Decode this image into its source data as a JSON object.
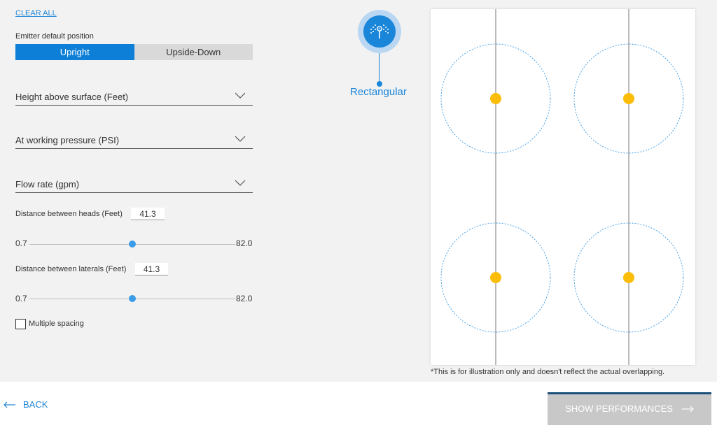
{
  "clear_all": "CLEAR ALL",
  "emitter": {
    "label": "Emitter default position",
    "options": [
      "Upright",
      "Upside-Down"
    ],
    "selected": "Upright"
  },
  "dropdowns": {
    "height": "Height above surface (Feet)",
    "pressure": "At working pressure (PSI)",
    "flow": "Flow rate (gpm)"
  },
  "heads": {
    "label": "Distance between heads (Feet)",
    "value": "41.3",
    "min": "0.7",
    "max": "82.0",
    "fraction": 0.5
  },
  "laterals": {
    "label": "Distance between laterals (Feet)",
    "value": "41.3",
    "min": "0.7",
    "max": "82.0",
    "fraction": 0.5
  },
  "multiple_spacing": {
    "label": "Multiple spacing",
    "checked": false
  },
  "layout_shape": {
    "label": "Rectangular",
    "icon": "sprinkler-icon"
  },
  "illustration_note": "*This is for illustration only and doesn't reflect the actual overlapping.",
  "back": {
    "label": "BACK",
    "icon": "arrow-left-icon"
  },
  "show_performances": {
    "label": "SHOW PERFORMANCES",
    "icon": "arrow-right-icon"
  },
  "colors": {
    "accent": "#0d7fd6",
    "emitter": "#fbbd08",
    "circle": "#3b9ce8"
  }
}
